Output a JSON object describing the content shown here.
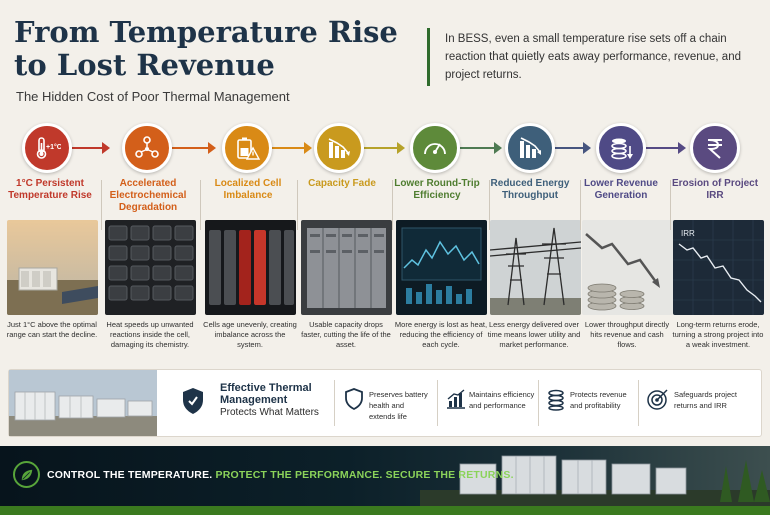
{
  "header": {
    "title_line1": "From Temperature Rise",
    "title_line2": "to Lost Revenue",
    "subtitle": "The Hidden Cost of Poor Thermal Management",
    "intro": "In BESS, even a small temperature rise sets off a chain reaction that quietly eats away performance, revenue, and project returns."
  },
  "steps": [
    {
      "title": "1°C Persistent Temperature Rise",
      "icon": "thermometer-icon",
      "badge": "+1°C",
      "color": "#c0392b",
      "desc": "Just 1°C above the optimal range can start the decline."
    },
    {
      "title": "Accelerated Electrochemical Degradation",
      "icon": "molecule-icon",
      "color": "#d35f1a",
      "desc": "Heat speeds up unwanted reactions inside the cell, damaging its chemistry."
    },
    {
      "title": "Localized Cell Imbalance",
      "icon": "battery-warning-icon",
      "color": "#d98a16",
      "desc": "Cells age unevenly, creating imbalance across the system."
    },
    {
      "title": "Capacity Fade",
      "icon": "declining-bars-icon",
      "color": "#c99a1e",
      "desc": "Usable capacity drops faster, cutting the life of the asset."
    },
    {
      "title": "Lower Round-Trip Efficiency",
      "icon": "gauge-icon",
      "color": "#5e8a3a",
      "desc": "More energy is lost as heat, reducing the efficiency of each cycle."
    },
    {
      "title": "Reduced Energy Throughput",
      "icon": "bar-chart-down-icon",
      "color": "#3e5f7a",
      "desc": "Less energy delivered over time means lower utility and market performance."
    },
    {
      "title": "Lower Revenue Generation",
      "icon": "coins-down-icon",
      "color": "#4f4a86",
      "desc": "Lower throughput directly hits revenue and cash flows."
    },
    {
      "title": "Erosion of Project IRR",
      "icon": "rupee-icon",
      "color": "#5a4a80",
      "photo_label": "IRR",
      "desc": "Long-term returns erode, turning a strong project into a weak investment."
    }
  ],
  "band": {
    "title_line1": "Effective Thermal",
    "title_line2": "Management",
    "subtitle": "Protects What Matters",
    "benefits": [
      {
        "icon": "shield-icon",
        "text": "Preserves battery health and extends life"
      },
      {
        "icon": "chart-up-icon",
        "text": "Maintains efficiency and performance"
      },
      {
        "icon": "coins-icon",
        "text": "Protects revenue and profitability"
      },
      {
        "icon": "target-icon",
        "text": "Safeguards project returns and IRR"
      }
    ]
  },
  "footer": {
    "part1": "CONTROL THE TEMPERATURE.",
    "part2": "PROTECT THE PERFORMANCE. SECURE THE RETURNS."
  }
}
